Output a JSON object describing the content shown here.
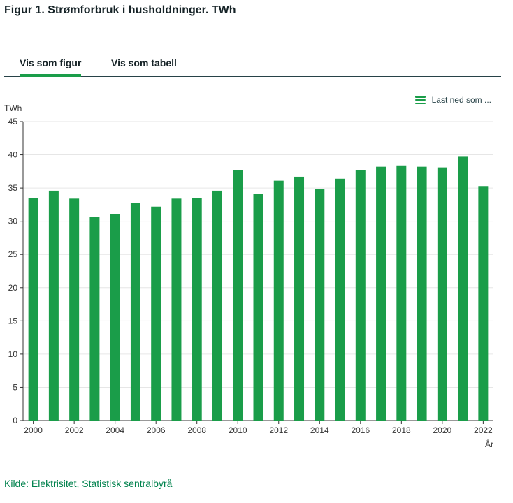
{
  "title": "Figur 1. Strømforbruk i husholdninger. TWh",
  "tabs": {
    "figure": "Vis som figur",
    "table": "Vis som tabell"
  },
  "download_label": "Last ned som ...",
  "source_link": "Kilde: Elektrisitet, Statistisk sentralbyrå",
  "colors": {
    "bar": "#1a9d49",
    "accent": "#1a9d49",
    "link": "#00824d"
  },
  "chart_data": {
    "type": "bar",
    "title": "Strømforbruk i husholdninger",
    "xlabel": "År",
    "ylabel": "TWh",
    "ylim": [
      0,
      45
    ],
    "yticks": [
      0,
      5,
      10,
      15,
      20,
      25,
      30,
      35,
      40,
      45
    ],
    "xtick_labels": [
      "2000",
      "2002",
      "2004",
      "2006",
      "2008",
      "2010",
      "2012",
      "2014",
      "2016",
      "2018",
      "2020",
      "2022"
    ],
    "categories": [
      "2000",
      "2001",
      "2002",
      "2003",
      "2004",
      "2005",
      "2006",
      "2007",
      "2008",
      "2009",
      "2010",
      "2011",
      "2012",
      "2013",
      "2014",
      "2015",
      "2016",
      "2017",
      "2018",
      "2019",
      "2020",
      "2021",
      "2022"
    ],
    "values": [
      33.5,
      34.6,
      33.4,
      30.7,
      31.1,
      32.7,
      32.2,
      33.4,
      33.5,
      34.6,
      37.7,
      34.1,
      36.1,
      36.7,
      34.8,
      36.4,
      37.7,
      38.2,
      38.4,
      38.2,
      38.1,
      39.7,
      35.3
    ]
  }
}
